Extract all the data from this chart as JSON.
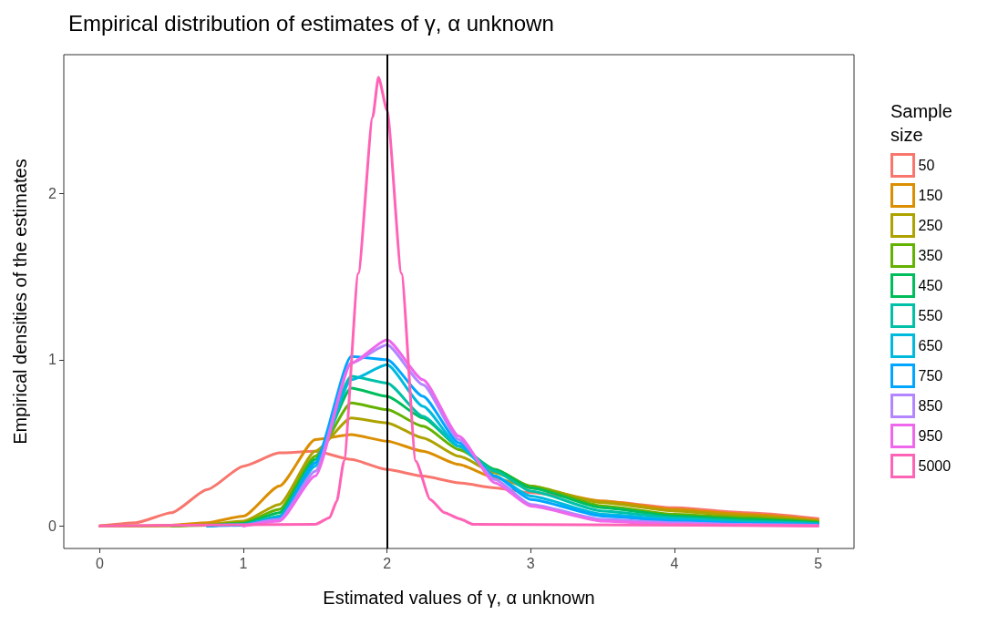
{
  "chart_data": {
    "type": "line",
    "title": "Empirical distribution of estimates of γ, α unknown",
    "xlabel": "Estimated values of γ, α unknown",
    "ylabel": "Empirical densities of the estimates",
    "legend_title": "Sample size",
    "x": [
      0,
      0.25,
      0.5,
      0.75,
      1,
      1.25,
      1.5,
      1.75,
      2,
      2.25,
      2.5,
      2.75,
      3,
      3.5,
      4,
      4.5,
      5
    ],
    "series": [
      {
        "name": "50",
        "color": "#f8766d",
        "values": [
          0,
          0.02,
          0.08,
          0.22,
          0.36,
          0.44,
          0.45,
          0.4,
          0.34,
          0.3,
          0.26,
          0.23,
          0.2,
          0.15,
          0.11,
          0.08,
          0.045
        ]
      },
      {
        "name": "150",
        "color": "#db8e00",
        "values": [
          0,
          0,
          0.005,
          0.02,
          0.06,
          0.24,
          0.52,
          0.55,
          0.51,
          0.45,
          0.37,
          0.29,
          0.23,
          0.15,
          0.1,
          0.07,
          0.035
        ]
      },
      {
        "name": "250",
        "color": "#aea200",
        "values": [
          0,
          0,
          0,
          0.01,
          0.03,
          0.13,
          0.45,
          0.65,
          0.62,
          0.53,
          0.42,
          0.32,
          0.24,
          0.14,
          0.09,
          0.06,
          0.03
        ]
      },
      {
        "name": "350",
        "color": "#64b200",
        "values": [
          null,
          null,
          0,
          0.005,
          0.02,
          0.1,
          0.42,
          0.74,
          0.7,
          0.6,
          0.46,
          0.34,
          0.24,
          0.12,
          0.07,
          0.05,
          0.025
        ]
      },
      {
        "name": "450",
        "color": "#00bd5c",
        "values": [
          null,
          null,
          null,
          0,
          0.015,
          0.08,
          0.4,
          0.83,
          0.78,
          0.65,
          0.48,
          0.34,
          0.23,
          0.11,
          0.06,
          0.04,
          0.02
        ]
      },
      {
        "name": "550",
        "color": "#00c1a7",
        "values": [
          null,
          null,
          null,
          0,
          0.01,
          0.06,
          0.38,
          0.9,
          0.86,
          0.66,
          0.48,
          0.33,
          0.21,
          0.09,
          0.05,
          0.03,
          0.015
        ]
      },
      {
        "name": "650",
        "color": "#00bade",
        "values": [
          null,
          null,
          null,
          0,
          0.01,
          0.05,
          0.36,
          0.88,
          0.97,
          0.72,
          0.48,
          0.3,
          0.18,
          0.07,
          0.04,
          0.02,
          0.01
        ]
      },
      {
        "name": "750",
        "color": "#00a6ff",
        "values": [
          null,
          null,
          null,
          0,
          0.005,
          0.05,
          0.38,
          1.02,
          1.0,
          0.78,
          0.5,
          0.3,
          0.16,
          0.06,
          0.03,
          0.015,
          0.01
        ]
      },
      {
        "name": "850",
        "color": "#b385ff",
        "values": [
          null,
          null,
          null,
          null,
          0,
          0.04,
          0.33,
          0.98,
          1.09,
          0.85,
          0.52,
          0.28,
          0.13,
          0.04,
          0.02,
          0.01,
          0.005
        ]
      },
      {
        "name": "950",
        "color": "#ef67eb",
        "values": [
          null,
          null,
          null,
          null,
          0,
          0.03,
          0.3,
          0.98,
          1.12,
          0.88,
          0.54,
          0.26,
          0.12,
          0.03,
          0.01,
          0.005,
          0
        ]
      },
      {
        "name": "5000",
        "color": "#ff63b6",
        "x": [
          0,
          1.5,
          1.6,
          1.65,
          1.7,
          1.8,
          1.9,
          1.94,
          2.0,
          2.1,
          2.2,
          2.3,
          2.4,
          2.5,
          2.6,
          5
        ],
        "values": [
          0,
          0.01,
          0.05,
          0.15,
          0.39,
          1.52,
          2.46,
          2.7,
          2.5,
          1.52,
          0.39,
          0.16,
          0.08,
          0.045,
          0.01,
          0
        ]
      }
    ],
    "ref_lines": [
      {
        "axis": "x",
        "value": 2,
        "color": "#000000"
      }
    ],
    "xlim": [
      -0.25,
      5.25
    ],
    "xticks": [
      0,
      1,
      2,
      3,
      4,
      5
    ],
    "ylim": [
      -0.135,
      2.835
    ],
    "yticks": [
      0,
      1,
      2
    ],
    "grid": false,
    "legend": "right",
    "marker": "none",
    "line_style": "solid"
  }
}
